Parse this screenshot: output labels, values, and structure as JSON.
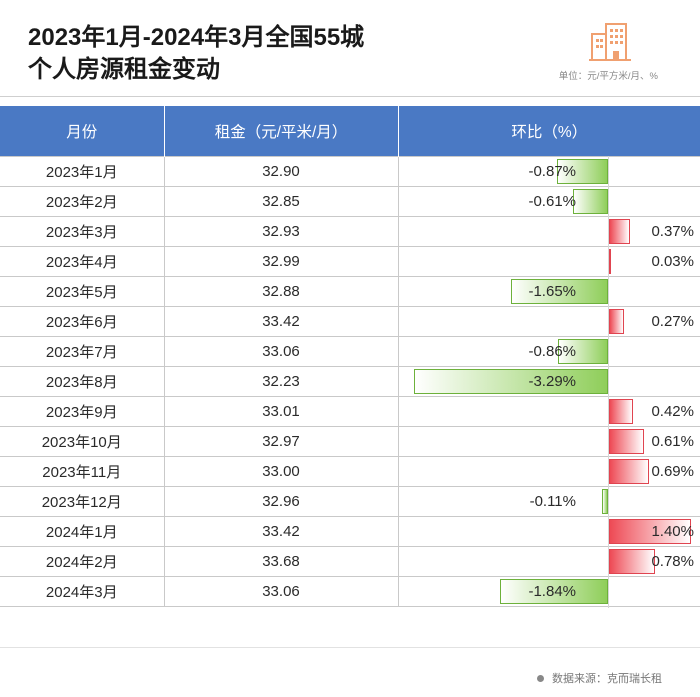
{
  "header": {
    "title_line1": "2023年1月-2024年3月全国55城",
    "title_line2": "个人房源租金变动",
    "unit_note": "单位：元/平方米/月、%"
  },
  "colors": {
    "header_bg": "#4a79c4",
    "negative_bar": "#8fce5a",
    "positive_bar": "#ee4a55",
    "logo": "#f0a070"
  },
  "icons": {
    "logo": "building-icon"
  },
  "table": {
    "columns": [
      "月份",
      "租金（元/平米/月）",
      "环比（%）"
    ]
  },
  "chart_data": {
    "type": "table",
    "title": "2023年1月-2024年3月全国55城个人房源租金变动",
    "unit": "单位：元/平方米/月、%",
    "columns": [
      "月份",
      "租金（元/平米/月）",
      "环比（%）"
    ],
    "rows": [
      {
        "month": "2023年1月",
        "rent": "32.90",
        "change": -0.87,
        "change_label": "-0.87%"
      },
      {
        "month": "2023年2月",
        "rent": "32.85",
        "change": -0.61,
        "change_label": "-0.61%"
      },
      {
        "month": "2023年3月",
        "rent": "32.93",
        "change": 0.37,
        "change_label": "0.37%"
      },
      {
        "month": "2023年4月",
        "rent": "32.99",
        "change": 0.03,
        "change_label": "0.03%"
      },
      {
        "month": "2023年5月",
        "rent": "32.88",
        "change": -1.65,
        "change_label": "-1.65%"
      },
      {
        "month": "2023年6月",
        "rent": "33.42",
        "change": 0.27,
        "change_label": "0.27%"
      },
      {
        "month": "2023年7月",
        "rent": "33.06",
        "change": -0.86,
        "change_label": "-0.86%"
      },
      {
        "month": "2023年8月",
        "rent": "32.23",
        "change": -3.29,
        "change_label": "-3.29%"
      },
      {
        "month": "2023年9月",
        "rent": "33.01",
        "change": 0.42,
        "change_label": "0.42%"
      },
      {
        "month": "2023年10月",
        "rent": "32.97",
        "change": 0.61,
        "change_label": "0.61%"
      },
      {
        "month": "2023年11月",
        "rent": "33.00",
        "change": 0.69,
        "change_label": "0.69%"
      },
      {
        "month": "2023年12月",
        "rent": "32.96",
        "change": -0.11,
        "change_label": "-0.11%"
      },
      {
        "month": "2024年1月",
        "rent": "33.42",
        "change": 1.4,
        "change_label": "1.40%"
      },
      {
        "month": "2024年2月",
        "rent": "33.68",
        "change": 0.78,
        "change_label": "0.78%"
      },
      {
        "month": "2024年3月",
        "rent": "33.06",
        "change": -1.84,
        "change_label": "-1.84%"
      }
    ]
  },
  "footer": {
    "source": "数据来源：克而瑞长租"
  }
}
